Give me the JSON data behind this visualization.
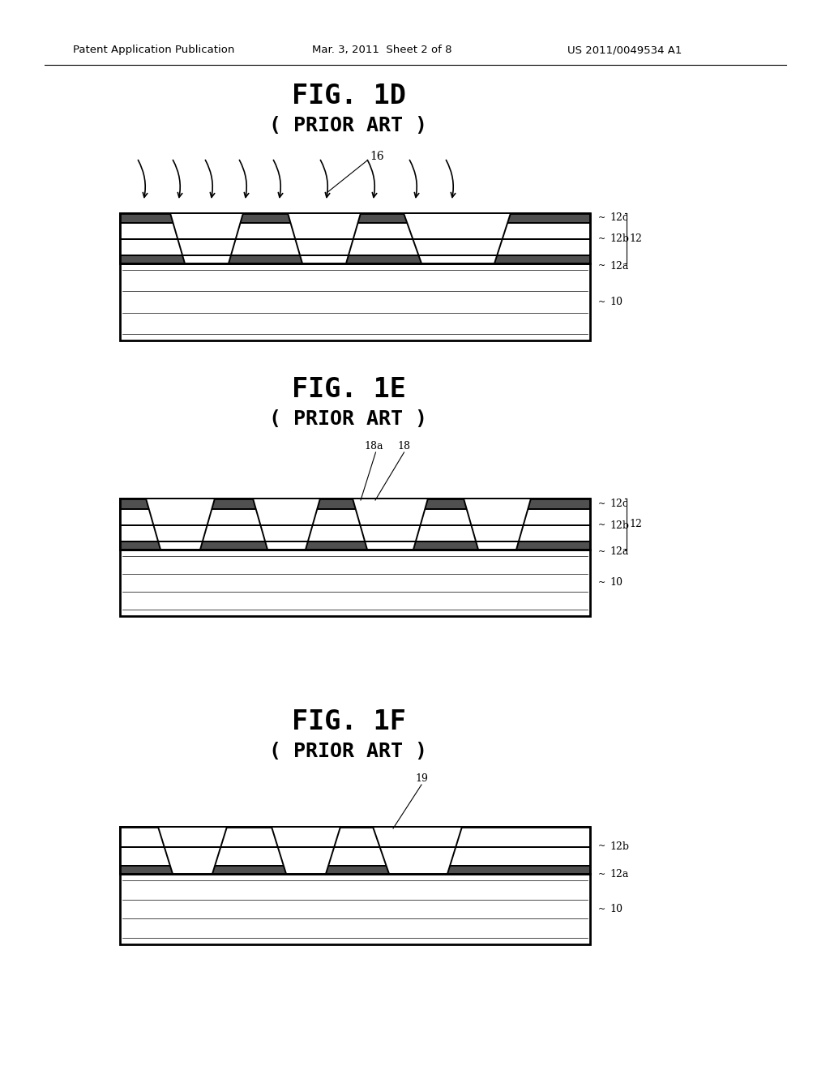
{
  "bg_color": "#ffffff",
  "header_left": "Patent Application Publication",
  "header_mid": "Mar. 3, 2011  Sheet 2 of 8",
  "header_right": "US 2011/0049534 A1",
  "fig1d_title": "FIG. 1D",
  "fig1d_sub": "( PRIOR ART )",
  "fig1e_title": "FIG. 1E",
  "fig1e_sub": "( PRIOR ART )",
  "fig1f_title": "FIG. 1F",
  "fig1f_sub": "( PRIOR ART )",
  "lw": 1.4,
  "lw_thick": 2.0,
  "lw_thin": 0.8
}
